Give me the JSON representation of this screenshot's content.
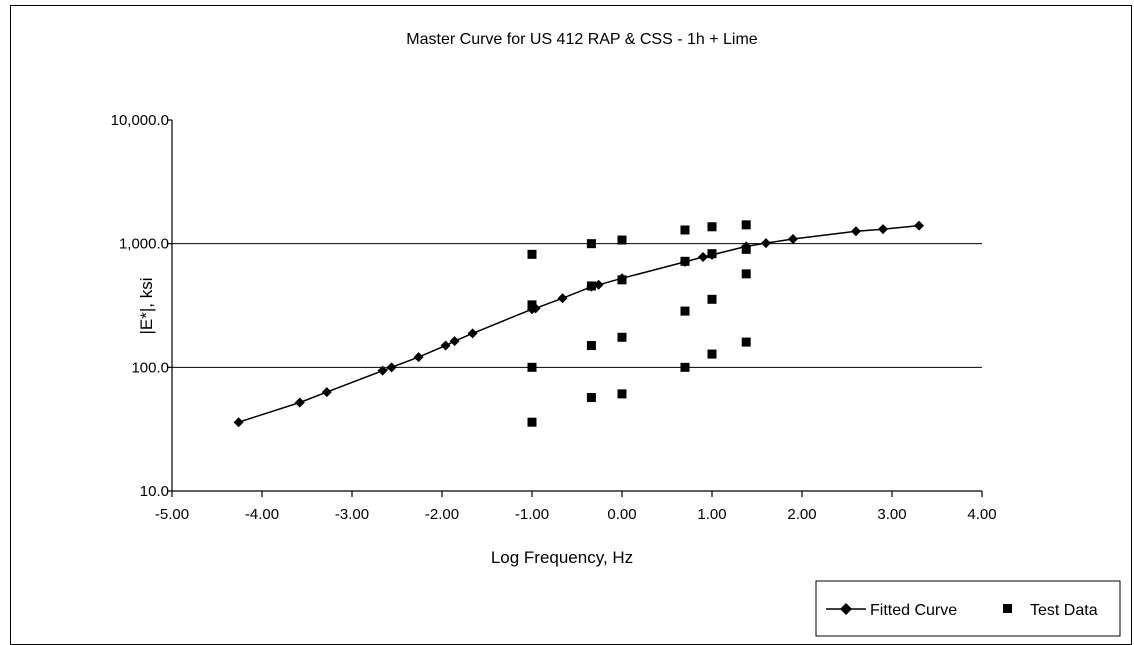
{
  "chart_data": {
    "type": "scatter",
    "title": "Master Curve for US 412 RAP & CSS - 1h + Lime",
    "xlabel": "Log Frequency, Hz",
    "ylabel": "|E*|, ksi",
    "xlim": [
      -5.0,
      4.0
    ],
    "ylim": [
      10,
      10000
    ],
    "yscale": "log",
    "grid": "horizontal major gridlines",
    "legend_position": "bottom-right",
    "x_tick_labels": [
      "-5.00",
      "-4.00",
      "-3.00",
      "-2.00",
      "-1.00",
      "0.00",
      "1.00",
      "2.00",
      "3.00",
      "4.00"
    ],
    "y_tick_labels": [
      "10.0",
      "100.0",
      "1,000.0",
      "10,000.0"
    ],
    "series": [
      {
        "name": "Fitted Curve",
        "style": "line with diamond markers",
        "color": "#000000",
        "points": [
          [
            -4.26,
            36
          ],
          [
            -3.58,
            52
          ],
          [
            -3.28,
            63
          ],
          [
            -2.66,
            94
          ],
          [
            -2.56,
            100
          ],
          [
            -2.26,
            121
          ],
          [
            -1.96,
            150
          ],
          [
            -1.86,
            163
          ],
          [
            -1.66,
            188
          ],
          [
            -1.0,
            295
          ],
          [
            -0.96,
            300
          ],
          [
            -0.66,
            362
          ],
          [
            -0.34,
            448
          ],
          [
            -0.26,
            465
          ],
          [
            0.0,
            525
          ],
          [
            0.7,
            712
          ],
          [
            0.9,
            780
          ],
          [
            1.0,
            812
          ],
          [
            1.38,
            950
          ],
          [
            1.6,
            1010
          ],
          [
            1.9,
            1090
          ],
          [
            2.6,
            1260
          ],
          [
            2.9,
            1310
          ],
          [
            3.3,
            1400
          ]
        ]
      },
      {
        "name": "Test Data",
        "style": "square markers",
        "color": "#000000",
        "points": [
          [
            -1.0,
            820
          ],
          [
            -1.0,
            320
          ],
          [
            -1.0,
            100
          ],
          [
            -1.0,
            36
          ],
          [
            -0.34,
            1000
          ],
          [
            -0.34,
            455
          ],
          [
            -0.34,
            150
          ],
          [
            -0.34,
            57
          ],
          [
            0.0,
            1070
          ],
          [
            0.0,
            510
          ],
          [
            0.0,
            175
          ],
          [
            0.0,
            61
          ],
          [
            0.7,
            1290
          ],
          [
            0.7,
            720
          ],
          [
            0.7,
            285
          ],
          [
            0.7,
            100
          ],
          [
            1.0,
            1370
          ],
          [
            1.0,
            830
          ],
          [
            1.0,
            355
          ],
          [
            1.0,
            128
          ],
          [
            1.38,
            1420
          ],
          [
            1.38,
            900
          ],
          [
            1.38,
            570
          ],
          [
            1.38,
            160
          ]
        ]
      }
    ]
  }
}
